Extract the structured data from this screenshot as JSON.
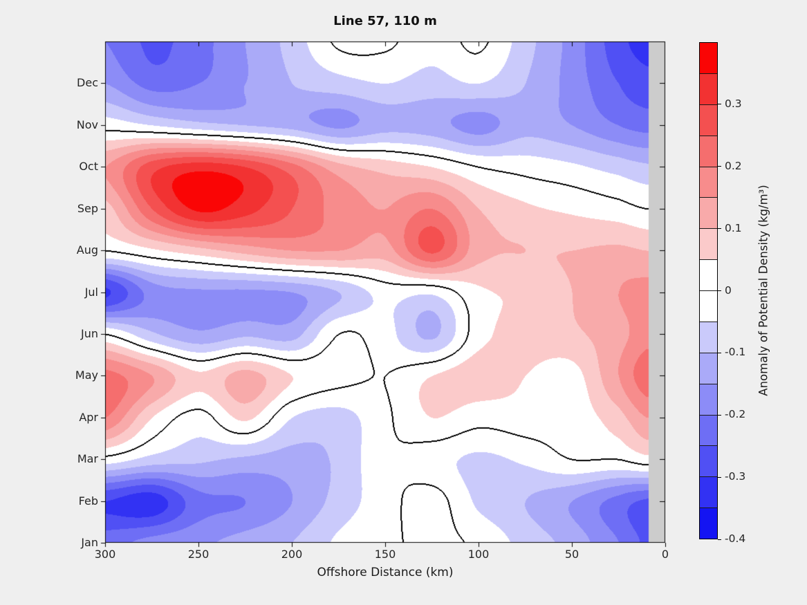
{
  "figure": {
    "background_color": "#efefef",
    "plot_frame_color": "#000000"
  },
  "chart_data": {
    "type": "heatmap",
    "title": "Line 57, 110 m",
    "xlabel": "Offshore Distance (km)",
    "x_axis": {
      "range": [
        300,
        0
      ],
      "reversed": true,
      "tick_labels": [
        "300",
        "250",
        "200",
        "150",
        "100",
        "50",
        "0"
      ],
      "tick_values": [
        300,
        250,
        200,
        150,
        100,
        50,
        0
      ]
    },
    "y_axis": {
      "month_labels": [
        "Jan",
        "Feb",
        "Mar",
        "Apr",
        "May",
        "Jun",
        "Jul",
        "Aug",
        "Sep",
        "Oct",
        "Nov",
        "Dec"
      ]
    },
    "colorbar": {
      "label": "Anomaly of Potential Density (kg/m³)",
      "vmin": -0.4,
      "vmax": 0.4,
      "band_step": 0.05,
      "tick_labels": [
        "0.3",
        "0.2",
        "0.1",
        "0",
        "-0.1",
        "-0.2",
        "-0.3",
        "-0.4"
      ],
      "tick_values": [
        0.3,
        0.2,
        0.1,
        0,
        -0.1,
        -0.2,
        -0.3,
        -0.4
      ],
      "band_colors_low_to_high": [
        "#1414f2",
        "#3232f3",
        "#5050f4",
        "#6e6ef5",
        "#8c8cf7",
        "#aaaaf8",
        "#cacafb",
        "#ffffff",
        "#ffffff",
        "#fbcaca",
        "#f8aaaa",
        "#f78c8c",
        "#f56e6e",
        "#f45050",
        "#f23232",
        "#fa0505"
      ]
    },
    "zero_contour_color": "#000000",
    "no_data": {
      "km_range": [
        0,
        9
      ],
      "color": "#cccccc"
    },
    "grid": {
      "x_km": [
        300,
        275,
        250,
        225,
        200,
        175,
        150,
        125,
        100,
        75,
        50,
        25,
        10
      ],
      "rows_bottom_to_top": [
        {
          "month": "Jan",
          "values": [
            -0.22,
            -0.18,
            -0.16,
            -0.13,
            -0.1,
            -0.04,
            -0.01,
            0.01,
            -0.01,
            -0.07,
            -0.12,
            -0.2,
            -0.26
          ]
        },
        {
          "month": "Feb",
          "values": [
            -0.3,
            -0.33,
            -0.22,
            -0.2,
            -0.15,
            -0.08,
            -0.02,
            0.02,
            -0.06,
            -0.1,
            -0.15,
            -0.22,
            -0.26
          ]
        },
        {
          "month": "Mar",
          "values": [
            -0.02,
            -0.07,
            -0.09,
            -0.11,
            -0.12,
            -0.09,
            -0.01,
            -0.03,
            -0.06,
            -0.04,
            0.0,
            0.0,
            0.03
          ]
        },
        {
          "month": "Apr",
          "values": [
            0.2,
            0.05,
            -0.02,
            0.06,
            -0.05,
            -0.07,
            -0.01,
            0.05,
            0.02,
            0.03,
            0.02,
            0.08,
            0.15
          ]
        },
        {
          "month": "May",
          "values": [
            0.22,
            0.15,
            0.06,
            0.12,
            0.05,
            0.02,
            0.0,
            0.05,
            0.08,
            0.05,
            0.03,
            0.15,
            0.23
          ]
        },
        {
          "month": "Jun",
          "values": [
            0.0,
            -0.09,
            -0.14,
            -0.11,
            -0.12,
            0.0,
            -0.03,
            -0.11,
            0.03,
            0.07,
            0.09,
            0.13,
            0.18
          ]
        },
        {
          "month": "Jul",
          "values": [
            -0.31,
            -0.18,
            -0.16,
            -0.16,
            -0.15,
            -0.1,
            -0.03,
            -0.04,
            0.04,
            0.06,
            0.1,
            0.15,
            0.17
          ]
        },
        {
          "month": "Aug",
          "values": [
            0.0,
            0.04,
            0.08,
            0.12,
            0.15,
            0.15,
            0.13,
            0.26,
            0.12,
            0.1,
            0.1,
            0.11,
            0.1
          ]
        },
        {
          "month": "Sep",
          "values": [
            0.08,
            0.25,
            0.36,
            0.32,
            0.25,
            0.18,
            0.15,
            0.2,
            0.1,
            0.06,
            0.04,
            0.02,
            0.0
          ]
        },
        {
          "month": "Oct",
          "values": [
            0.15,
            0.28,
            0.33,
            0.3,
            0.22,
            0.12,
            0.08,
            0.05,
            0.0,
            -0.02,
            -0.04,
            -0.07,
            -0.09
          ]
        },
        {
          "month": "Nov",
          "values": [
            -0.02,
            -0.05,
            -0.08,
            -0.1,
            -0.12,
            -0.16,
            -0.12,
            -0.13,
            -0.17,
            -0.12,
            -0.15,
            -0.2,
            -0.22
          ]
        },
        {
          "month": "Dec",
          "values": [
            -0.15,
            -0.22,
            -0.2,
            -0.15,
            -0.1,
            -0.07,
            -0.05,
            -0.07,
            -0.05,
            -0.1,
            -0.17,
            -0.25,
            -0.28
          ]
        },
        {
          "month": "Jan",
          "values": [
            -0.2,
            -0.26,
            -0.22,
            -0.15,
            -0.08,
            0.01,
            0.01,
            -0.03,
            0.01,
            -0.08,
            -0.17,
            -0.28,
            -0.32
          ]
        }
      ]
    }
  }
}
